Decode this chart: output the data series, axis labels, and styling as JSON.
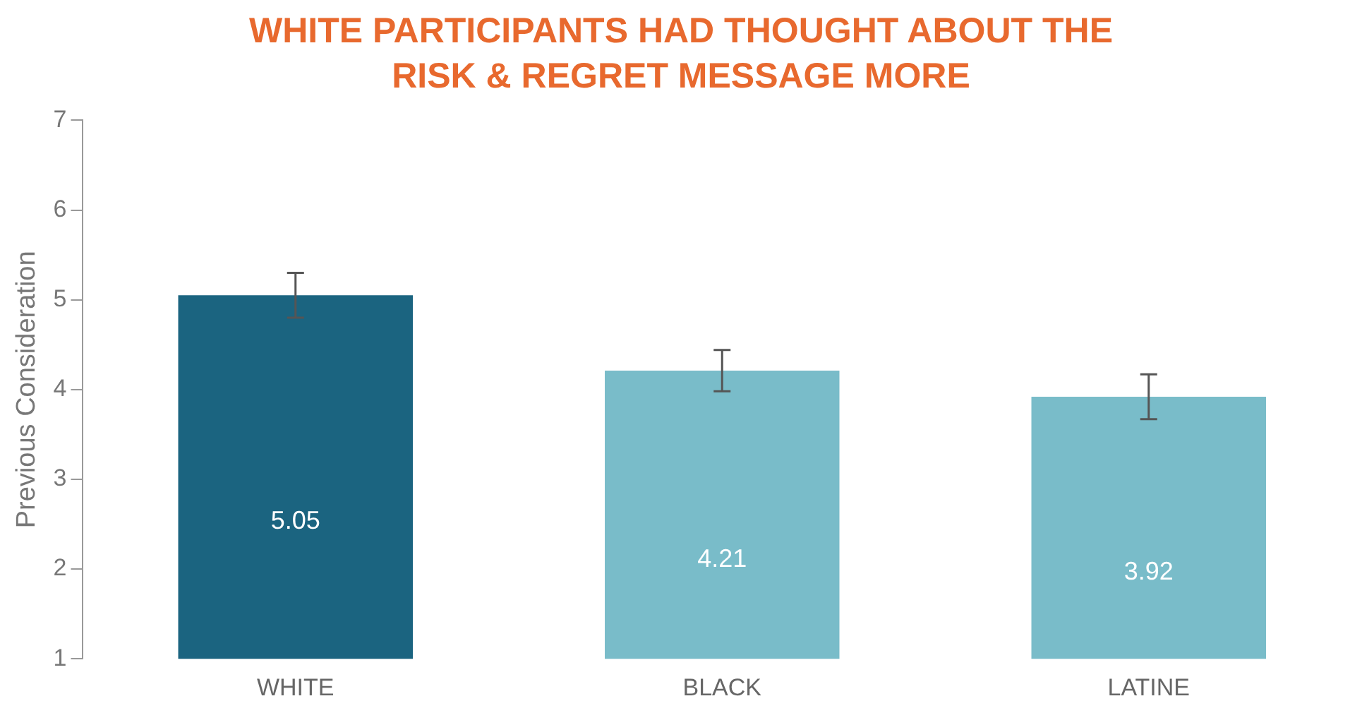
{
  "chart_data": {
    "type": "bar",
    "title": "WHITE PARTICIPANTS HAD THOUGHT ABOUT THE RISK & REGRET MESSAGE MORE",
    "ylabel": "Previous Consideration",
    "categories": [
      "WHITE",
      "BLACK",
      "LATINE"
    ],
    "values": [
      5.05,
      4.21,
      3.92
    ],
    "colors": [
      "#1b6480",
      "#79bcc9",
      "#79bcc9"
    ],
    "errors": [
      0.25,
      0.23,
      0.25
    ],
    "ylim": [
      1,
      7
    ],
    "yticks": [
      1,
      2,
      3,
      4,
      5,
      6,
      7
    ],
    "grid": false,
    "legend": false,
    "data_labels": true
  }
}
